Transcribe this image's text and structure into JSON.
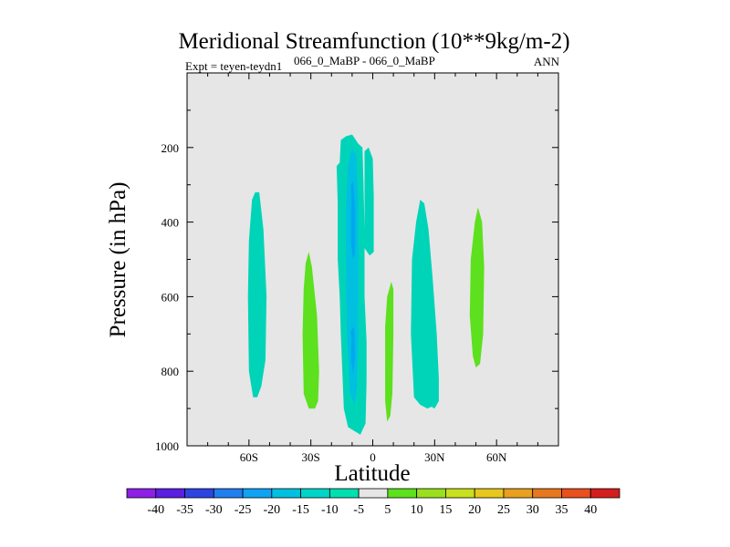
{
  "chart_data": {
    "type": "heatmap",
    "title": "Meridional Streamfunction (10**9kg/m-2)",
    "expt_label": "Expt = teyen-teydn1",
    "case_label": "066_0_MaBP - 066_0_MaBP",
    "season": "ANN",
    "xlabel": "Latitude",
    "ylabel": "Pressure (in hPa)",
    "xlim": [
      -90,
      90
    ],
    "ylim": [
      1000,
      0
    ],
    "xticks": [
      {
        "value": -60,
        "label": "60S"
      },
      {
        "value": -30,
        "label": "30S"
      },
      {
        "value": 0,
        "label": "0"
      },
      {
        "value": 30,
        "label": "30N"
      },
      {
        "value": 60,
        "label": "60N"
      }
    ],
    "yticks": [
      {
        "value": 200,
        "label": "200"
      },
      {
        "value": 400,
        "label": "400"
      },
      {
        "value": 600,
        "label": "600"
      },
      {
        "value": 800,
        "label": "800"
      },
      {
        "value": 1000,
        "label": "1000"
      }
    ],
    "background_color": "#e6e6e6",
    "regions": [
      {
        "name": "cell-60S",
        "level": -7.5,
        "color": "#00d4b8",
        "points": [
          [
            -57,
            320
          ],
          [
            -55,
            320
          ],
          [
            -53,
            420
          ],
          [
            -51.5,
            600
          ],
          [
            -52,
            770
          ],
          [
            -54,
            840
          ],
          [
            -56,
            870
          ],
          [
            -58,
            870
          ],
          [
            -60,
            800
          ],
          [
            -60.5,
            600
          ],
          [
            -60,
            450
          ],
          [
            -58.5,
            340
          ]
        ]
      },
      {
        "name": "cell-30S",
        "level": 7.5,
        "color": "#5de01e",
        "points": [
          [
            -31,
            480
          ],
          [
            -29.5,
            520
          ],
          [
            -27,
            650
          ],
          [
            -26,
            800
          ],
          [
            -26.5,
            880
          ],
          [
            -28,
            900
          ],
          [
            -31,
            900
          ],
          [
            -33.5,
            860
          ],
          [
            -34,
            700
          ],
          [
            -33.5,
            580
          ],
          [
            -32.5,
            510
          ]
        ]
      },
      {
        "name": "cell-eq-south",
        "level": -7.5,
        "color": "#00d4b8",
        "points": [
          [
            -16,
            240
          ],
          [
            -15.5,
            180
          ],
          [
            -13,
            170
          ],
          [
            -10,
            165
          ],
          [
            -7,
            190
          ],
          [
            -5,
            200
          ],
          [
            -4.5,
            290
          ],
          [
            -4,
            420
          ],
          [
            -4,
            600
          ],
          [
            -3,
            720
          ],
          [
            -3,
            830
          ],
          [
            -3.5,
            940
          ],
          [
            -6,
            970
          ],
          [
            -9,
            960
          ],
          [
            -12,
            950
          ],
          [
            -14,
            900
          ],
          [
            -15.5,
            700
          ],
          [
            -16,
            600
          ],
          [
            -17,
            500
          ],
          [
            -17,
            350
          ],
          [
            -17.5,
            250
          ]
        ]
      },
      {
        "name": "cell-eq-south-core-a",
        "level": -12.5,
        "color": "#00c0e0",
        "points": [
          [
            -12,
            250
          ],
          [
            -10,
            200
          ],
          [
            -8,
            220
          ],
          [
            -7,
            350
          ],
          [
            -7,
            520
          ],
          [
            -7,
            700
          ],
          [
            -7.5,
            840
          ],
          [
            -9,
            890
          ],
          [
            -11,
            860
          ],
          [
            -12.5,
            700
          ],
          [
            -13,
            520
          ],
          [
            -13,
            360
          ]
        ]
      },
      {
        "name": "cell-eq-south-core-b",
        "level": -17.5,
        "color": "#00a8f0",
        "points": [
          [
            -10.5,
            300
          ],
          [
            -9.5,
            290
          ],
          [
            -8.5,
            360
          ],
          [
            -8.5,
            480
          ],
          [
            -9.5,
            500
          ],
          [
            -10.5,
            460
          ]
        ]
      },
      {
        "name": "cell-eq-south-core-c",
        "level": -17.5,
        "color": "#00a8f0",
        "points": [
          [
            -10.5,
            690
          ],
          [
            -9,
            680
          ],
          [
            -8.5,
            760
          ],
          [
            -9.5,
            810
          ],
          [
            -10.5,
            770
          ]
        ]
      },
      {
        "name": "cell-eq-north-upper",
        "level": -7.5,
        "color": "#00d4b8",
        "points": [
          [
            -4,
            210
          ],
          [
            -2,
            200
          ],
          [
            0,
            230
          ],
          [
            0.5,
            330
          ],
          [
            0.5,
            480
          ],
          [
            -1.5,
            490
          ],
          [
            -4,
            470
          ]
        ]
      },
      {
        "name": "cell-eq-north",
        "level": 7.5,
        "color": "#5de01e",
        "points": [
          [
            9,
            560
          ],
          [
            10,
            580
          ],
          [
            10,
            700
          ],
          [
            9.5,
            860
          ],
          [
            8.5,
            920
          ],
          [
            7,
            935
          ],
          [
            6,
            880
          ],
          [
            6,
            680
          ],
          [
            7,
            600
          ]
        ]
      },
      {
        "name": "cell-30N",
        "level": -7.5,
        "color": "#00d4b8",
        "points": [
          [
            23,
            340
          ],
          [
            25,
            350
          ],
          [
            27,
            420
          ],
          [
            29,
            550
          ],
          [
            31,
            700
          ],
          [
            32,
            820
          ],
          [
            32,
            880
          ],
          [
            30,
            900
          ],
          [
            28.5,
            895
          ],
          [
            26.5,
            900
          ],
          [
            23,
            890
          ],
          [
            20,
            870
          ],
          [
            18.5,
            700
          ],
          [
            19,
            500
          ],
          [
            21,
            400
          ]
        ]
      },
      {
        "name": "cell-60N",
        "level": 7.5,
        "color": "#5de01e",
        "points": [
          [
            51,
            360
          ],
          [
            53,
            400
          ],
          [
            54,
            520
          ],
          [
            53.5,
            700
          ],
          [
            52,
            780
          ],
          [
            50,
            790
          ],
          [
            48.5,
            760
          ],
          [
            47,
            650
          ],
          [
            47.5,
            500
          ],
          [
            49.5,
            400
          ]
        ]
      }
    ],
    "colorbar": {
      "labels": [
        "-40",
        "-35",
        "-30",
        "-25",
        "-20",
        "-15",
        "-10",
        "-5",
        "5",
        "10",
        "15",
        "20",
        "25",
        "30",
        "35",
        "40"
      ],
      "colors": [
        "#8d1fe6",
        "#5a1fe0",
        "#2e44e0",
        "#1f7ef0",
        "#0fa2f5",
        "#00c0e0",
        "#00d4c8",
        "#00dfb0",
        "#e6e6e6",
        "#5de01e",
        "#9ae01e",
        "#c8e01e",
        "#e8c81e",
        "#e8a01e",
        "#e8781e",
        "#e8501e",
        "#d41e1e"
      ]
    }
  }
}
